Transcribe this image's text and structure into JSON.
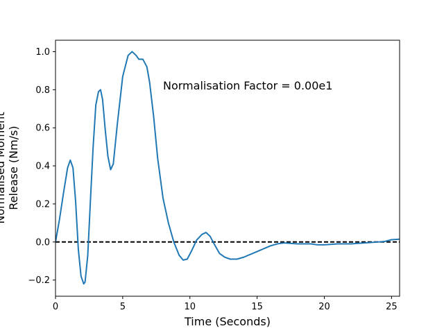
{
  "chart_data": {
    "type": "line",
    "title": "",
    "xlabel": "Time (Seconds)",
    "ylabel_lines": [
      "Normalised Moment",
      "Release (Nm/s)"
    ],
    "annotation": "Normalisation Factor = 0.00e1",
    "xlim": [
      0,
      25.6
    ],
    "ylim": [
      -0.285,
      1.06
    ],
    "x_ticks": [
      0,
      5,
      10,
      15,
      20,
      25
    ],
    "y_ticks": [
      -0.2,
      0.0,
      0.2,
      0.4,
      0.6,
      0.8,
      1.0
    ],
    "x_tick_labels": [
      "0",
      "5",
      "10",
      "15",
      "20",
      "25"
    ],
    "y_tick_labels": [
      "−0.2",
      "0.0",
      "0.2",
      "0.4",
      "0.6",
      "0.8",
      "1.0"
    ],
    "grid": false,
    "reference_line": {
      "y": 0.0,
      "style": "dashed",
      "color": "#000000"
    },
    "series": [
      {
        "color": "#1f77b4",
        "x": [
          0.0,
          0.3,
          0.6,
          0.9,
          1.1,
          1.3,
          1.5,
          1.7,
          1.9,
          2.1,
          2.2,
          2.4,
          2.6,
          2.8,
          3.0,
          3.2,
          3.35,
          3.5,
          3.7,
          3.9,
          4.1,
          4.3,
          4.6,
          5.0,
          5.4,
          5.7,
          6.0,
          6.2,
          6.5,
          6.8,
          7.0,
          7.3,
          7.6,
          8.0,
          8.4,
          8.8,
          9.2,
          9.5,
          9.8,
          10.1,
          10.5,
          10.9,
          11.2,
          11.5,
          11.8,
          12.2,
          12.6,
          13.0,
          13.5,
          14.0,
          15.0,
          16.0,
          16.5,
          17.0,
          18.0,
          19.0,
          19.5,
          20.0,
          21.0,
          22.0,
          23.0,
          24.0,
          24.5,
          25.0,
          25.6
        ],
        "y": [
          0.0,
          0.12,
          0.26,
          0.39,
          0.43,
          0.39,
          0.21,
          -0.04,
          -0.18,
          -0.22,
          -0.21,
          -0.07,
          0.22,
          0.5,
          0.72,
          0.79,
          0.8,
          0.75,
          0.59,
          0.45,
          0.38,
          0.41,
          0.62,
          0.87,
          0.98,
          1.0,
          0.98,
          0.96,
          0.96,
          0.92,
          0.84,
          0.66,
          0.44,
          0.23,
          0.1,
          0.0,
          -0.07,
          -0.095,
          -0.09,
          -0.05,
          0.01,
          0.04,
          0.05,
          0.03,
          -0.01,
          -0.06,
          -0.08,
          -0.09,
          -0.09,
          -0.08,
          -0.05,
          -0.02,
          -0.01,
          -0.005,
          -0.01,
          -0.01,
          -0.015,
          -0.015,
          -0.01,
          -0.01,
          -0.005,
          0.0,
          0.003,
          0.012,
          0.015
        ]
      }
    ]
  }
}
